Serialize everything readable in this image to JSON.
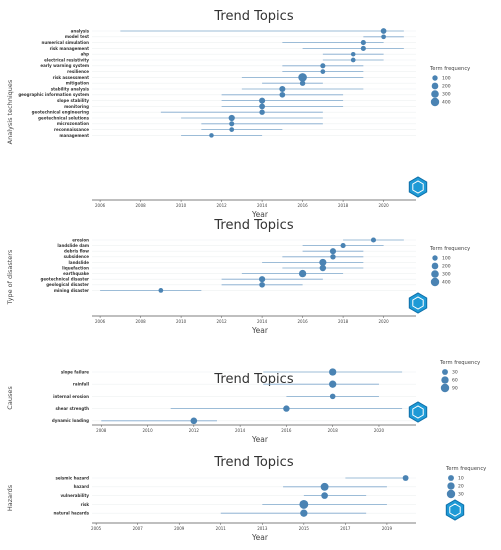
{
  "chart_data": [
    {
      "type": "scatter",
      "title": "Trend Topics",
      "xlabel": "Year",
      "ylabel": "Analysis techniques",
      "xlim": [
        2005.6,
        2021.6
      ],
      "xticks": [
        2006,
        2008,
        2010,
        2012,
        2014,
        2016,
        2018,
        2020
      ],
      "legend_title": "Term frequency",
      "legend_values": [
        100,
        200,
        300,
        400
      ],
      "categories": [
        "analysis",
        "model test",
        "numerical simulation",
        "risk management",
        "ahp",
        "electrical resistivity",
        "early warning system",
        "resilience",
        "risk assessment",
        "mitigation",
        "stability analysis",
        "geographic information system",
        "slope stability",
        "monitoring",
        "geotechnical engineering",
        "geotechnical solutions",
        "microzonation",
        "reconnaissance",
        "management"
      ],
      "points": [
        {
          "start": 2007,
          "end": 2021,
          "peak": 2020,
          "freq": 120
        },
        {
          "start": 2019,
          "end": 2021,
          "peak": 2020,
          "freq": 60
        },
        {
          "start": 2015,
          "end": 2020,
          "peak": 2019,
          "freq": 80
        },
        {
          "start": 2016,
          "end": 2021,
          "peak": 2019,
          "freq": 80
        },
        {
          "start": 2017,
          "end": 2020,
          "peak": 2018.5,
          "freq": 50
        },
        {
          "start": 2017,
          "end": 2020,
          "peak": 2018.5,
          "freq": 60
        },
        {
          "start": 2015,
          "end": 2019,
          "peak": 2017,
          "freq": 80
        },
        {
          "start": 2015,
          "end": 2019,
          "peak": 2017,
          "freq": 60
        },
        {
          "start": 2013,
          "end": 2019,
          "peak": 2016,
          "freq": 420
        },
        {
          "start": 2014,
          "end": 2017,
          "peak": 2016,
          "freq": 100
        },
        {
          "start": 2013,
          "end": 2019,
          "peak": 2015,
          "freq": 150
        },
        {
          "start": 2012,
          "end": 2018,
          "peak": 2015,
          "freq": 120
        },
        {
          "start": 2012,
          "end": 2018,
          "peak": 2014,
          "freq": 150
        },
        {
          "start": 2012,
          "end": 2018,
          "peak": 2014,
          "freq": 130
        },
        {
          "start": 2009,
          "end": 2017,
          "peak": 2014,
          "freq": 100
        },
        {
          "start": 2010,
          "end": 2017,
          "peak": 2012.5,
          "freq": 160
        },
        {
          "start": 2011,
          "end": 2017,
          "peak": 2012.5,
          "freq": 80
        },
        {
          "start": 2011,
          "end": 2015,
          "peak": 2012.5,
          "freq": 60
        },
        {
          "start": 2010,
          "end": 2014,
          "peak": 2011.5,
          "freq": 50
        }
      ]
    },
    {
      "type": "scatter",
      "title": "Trend Topics",
      "xlabel": "Year",
      "ylabel": "Type of disasters",
      "xlim": [
        2005.6,
        2021.6
      ],
      "xticks": [
        2006,
        2008,
        2010,
        2012,
        2014,
        2016,
        2018,
        2020
      ],
      "legend_title": "Term frequency",
      "legend_values": [
        100,
        200,
        300,
        400
      ],
      "categories": [
        "erosion",
        "landslide dam",
        "debris flow",
        "subsidence",
        "landslide",
        "liquefaction",
        "earthquake",
        "geotechnical disaster",
        "geological disaster",
        "mining disaster"
      ],
      "points": [
        {
          "start": 2018,
          "end": 2021,
          "peak": 2019.5,
          "freq": 80
        },
        {
          "start": 2016,
          "end": 2020,
          "peak": 2018,
          "freq": 80
        },
        {
          "start": 2016,
          "end": 2019,
          "peak": 2017.5,
          "freq": 150
        },
        {
          "start": 2015,
          "end": 2019,
          "peak": 2017.5,
          "freq": 100
        },
        {
          "start": 2014,
          "end": 2019,
          "peak": 2017,
          "freq": 250
        },
        {
          "start": 2015,
          "end": 2019,
          "peak": 2017,
          "freq": 180
        },
        {
          "start": 2013,
          "end": 2018,
          "peak": 2016,
          "freq": 270
        },
        {
          "start": 2012,
          "end": 2017,
          "peak": 2014,
          "freq": 160
        },
        {
          "start": 2012,
          "end": 2016,
          "peak": 2014,
          "freq": 120
        },
        {
          "start": 2006,
          "end": 2011,
          "peak": 2009,
          "freq": 60
        }
      ]
    },
    {
      "type": "scatter",
      "title": "Trend Topics",
      "xlabel": "Year",
      "ylabel": "Causes",
      "xlim": [
        2007.6,
        2021.6
      ],
      "xticks": [
        2008,
        2010,
        2012,
        2014,
        2016,
        2018,
        2020
      ],
      "legend_title": "Term frequency",
      "legend_values": [
        30,
        60,
        90
      ],
      "categories": [
        "slope failure",
        "rainfall",
        "internal erosion",
        "shear strength",
        "dynamic loading"
      ],
      "points": [
        {
          "start": 2015,
          "end": 2021,
          "peak": 2018,
          "freq": 60
        },
        {
          "start": 2015,
          "end": 2020,
          "peak": 2018,
          "freq": 60
        },
        {
          "start": 2016,
          "end": 2020,
          "peak": 2018,
          "freq": 25
        },
        {
          "start": 2011,
          "end": 2021,
          "peak": 2016,
          "freq": 40
        },
        {
          "start": 2008,
          "end": 2013,
          "peak": 2012,
          "freq": 45
        }
      ]
    },
    {
      "type": "scatter",
      "title": "Trend Topics",
      "xlabel": "Year",
      "ylabel": "Hazards",
      "xlim": [
        2004.8,
        2020.4
      ],
      "xticks": [
        2005,
        2007,
        2009,
        2011,
        2013,
        2015,
        2017,
        2019
      ],
      "legend_title": "Term frequency",
      "legend_values": [
        10,
        20,
        30
      ],
      "categories": [
        "seismic hazard",
        "hazard",
        "vulnerability",
        "risk",
        "natural hazards"
      ],
      "points": [
        {
          "start": 2017,
          "end": 2020,
          "peak": 2019.9,
          "freq": 10
        },
        {
          "start": 2014,
          "end": 2019,
          "peak": 2016,
          "freq": 25
        },
        {
          "start": 2015,
          "end": 2018,
          "peak": 2016,
          "freq": 15
        },
        {
          "start": 2013,
          "end": 2019,
          "peak": 2015,
          "freq": 35
        },
        {
          "start": 2011,
          "end": 2018,
          "peak": 2015,
          "freq": 20
        }
      ]
    }
  ]
}
